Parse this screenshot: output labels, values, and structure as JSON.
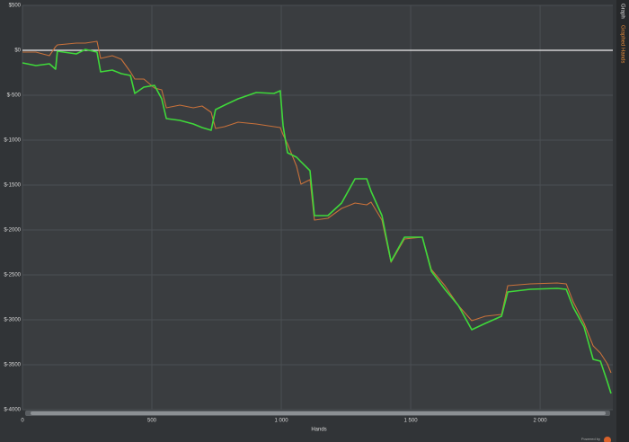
{
  "chart_data": {
    "type": "line",
    "x_label": "Hands",
    "x": [
      0,
      52,
      104,
      128,
      135,
      208,
      243,
      288,
      302,
      347,
      382,
      417,
      434,
      469,
      510,
      538,
      556,
      608,
      660,
      694,
      729,
      746,
      781,
      833,
      903,
      972,
      996,
      1007,
      1024,
      1059,
      1076,
      1111,
      1128,
      1180,
      1233,
      1285,
      1330,
      1347,
      1389,
      1424,
      1476,
      1545,
      1580,
      1632,
      1684,
      1736,
      1788,
      1851,
      1875,
      1962,
      2066,
      2101,
      2128,
      2170,
      2205,
      2233,
      2260,
      2274
    ],
    "series": [
      {
        "color": "#c8713a",
        "values": [
          -20,
          -20,
          -60,
          40,
          60,
          80,
          80,
          100,
          -90,
          -60,
          -100,
          -240,
          -320,
          -320,
          -420,
          -440,
          -640,
          -610,
          -640,
          -620,
          -690,
          -870,
          -850,
          -800,
          -820,
          -850,
          -860,
          -940,
          -1040,
          -1290,
          -1490,
          -1440,
          -1890,
          -1870,
          -1760,
          -1700,
          -1720,
          -1690,
          -1890,
          -2360,
          -2100,
          -2080,
          -2440,
          -2620,
          -2840,
          -3010,
          -2960,
          -2940,
          -2620,
          -2600,
          -2590,
          -2600,
          -2800,
          -3040,
          -3290,
          -3370,
          -3490,
          -3590
        ]
      },
      {
        "color": "#3fd83a",
        "values": [
          -140,
          -170,
          -150,
          -210,
          -10,
          -40,
          10,
          -20,
          -240,
          -220,
          -260,
          -280,
          -480,
          -410,
          -390,
          -540,
          -760,
          -780,
          -820,
          -860,
          -890,
          -660,
          -610,
          -540,
          -470,
          -480,
          -450,
          -840,
          -1140,
          -1190,
          -1240,
          -1340,
          -1840,
          -1840,
          -1700,
          -1430,
          -1430,
          -1570,
          -1840,
          -2350,
          -2080,
          -2080,
          -2460,
          -2660,
          -2840,
          -3110,
          -3040,
          -2960,
          -2690,
          -2660,
          -2650,
          -2660,
          -2860,
          -3080,
          -3440,
          -3460,
          -3690,
          -3820
        ]
      }
    ],
    "xlim": [
      0,
      2281
    ],
    "xticks": [
      0,
      500,
      {
        "value": 1000,
        "label": "1 000"
      },
      {
        "value": 1500,
        "label": "1 500"
      },
      {
        "value": 2000,
        "label": "2 000"
      }
    ],
    "ylim": [
      -4000,
      500
    ],
    "yticks": [
      {
        "value": 500,
        "label": "$500"
      },
      {
        "value": 0,
        "label": "$0"
      },
      {
        "value": -500,
        "label": "$-500"
      },
      {
        "value": -1000,
        "label": "$-1000"
      },
      {
        "value": -1500,
        "label": "$-1500"
      },
      {
        "value": -2000,
        "label": "$-2000"
      },
      {
        "value": -2500,
        "label": "$-2500"
      },
      {
        "value": -3000,
        "label": "$-3000"
      },
      {
        "value": -3500,
        "label": "$-3500"
      },
      {
        "value": -4000,
        "label": "$-4000"
      }
    ],
    "grid": true
  },
  "ui": {
    "tabs": [
      "Graph",
      "Graphed Hands"
    ],
    "footer": "Powered by"
  }
}
